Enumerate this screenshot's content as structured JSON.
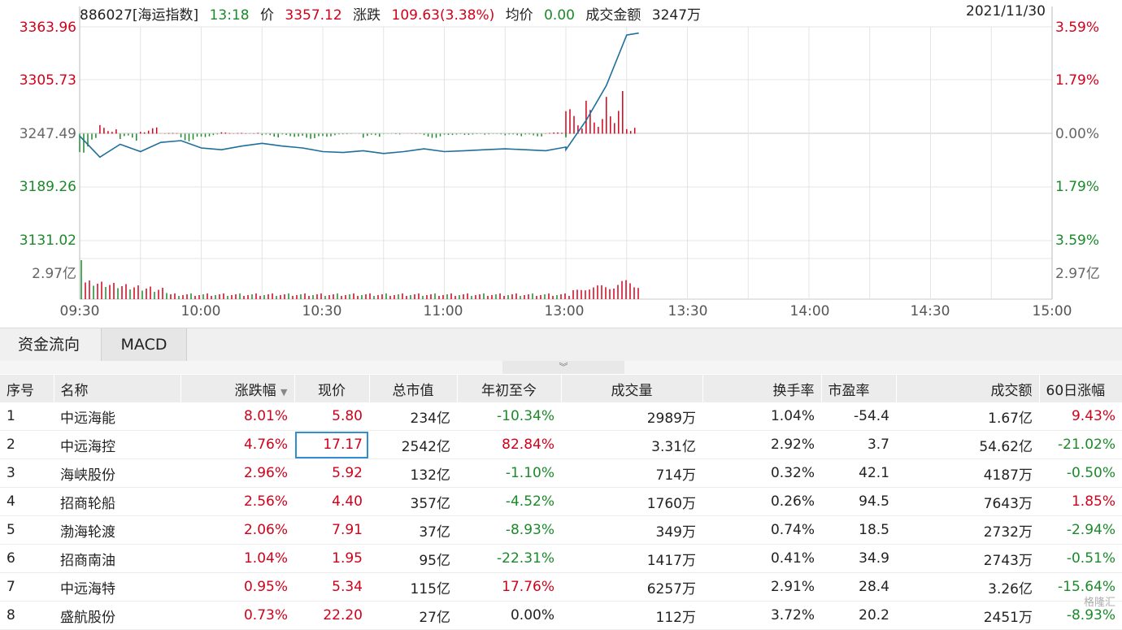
{
  "header": {
    "code_name": "886027[海运指数]",
    "time": "13:18",
    "price_label": "价",
    "price": "3357.12",
    "change_label": "涨跌",
    "change": "109.63(3.38%)",
    "avg_label": "均价",
    "avg": "0.00",
    "turnover_label": "成交金额",
    "turnover": "3247万",
    "date": "2021/11/30"
  },
  "chart": {
    "y_left": [
      "3363.96",
      "3305.73",
      "3247.49",
      "3189.26",
      "3131.02"
    ],
    "y_right": [
      "3.59%",
      "1.79%",
      "0.00%",
      "1.79%",
      "3.59%"
    ],
    "volume_label": "2.97亿",
    "x_ticks": [
      "09:30",
      "10:00",
      "10:30",
      "11:00",
      "13:00",
      "13:30",
      "14:00",
      "14:30",
      "15:00"
    ],
    "colors": {
      "up": "#d0021b",
      "down": "#1a8a2a",
      "line": "#1f6e9c",
      "grid": "#e4e4e4"
    }
  },
  "chart_data": {
    "type": "line",
    "ylim": [
      3131.02,
      3363.96
    ],
    "base": 3247.49,
    "x": [
      "09:30",
      "09:35",
      "09:40",
      "09:45",
      "09:50",
      "09:55",
      "10:00",
      "10:05",
      "10:10",
      "10:15",
      "10:20",
      "10:25",
      "10:30",
      "10:35",
      "10:40",
      "10:45",
      "10:50",
      "10:55",
      "11:00",
      "11:05",
      "11:10",
      "11:15",
      "11:20",
      "11:25",
      "11:30",
      "13:00",
      "13:05",
      "13:10",
      "13:15",
      "13:18"
    ],
    "values": [
      3245,
      3222,
      3236,
      3228,
      3238,
      3240,
      3232,
      3230,
      3234,
      3237,
      3234,
      3232,
      3228,
      3227,
      3229,
      3226,
      3228,
      3231,
      3228,
      3229,
      3230,
      3231,
      3230,
      3229,
      3233,
      3230,
      3262,
      3300,
      3355,
      3357.12
    ]
  },
  "tabs": {
    "fund_flow": "资金流向",
    "macd": "MACD"
  },
  "expander_icon": "double-chevron-down-icon",
  "table": {
    "headers": [
      "序号",
      "名称",
      "涨跌幅",
      "现价",
      "总市值",
      "年初至今",
      "成交量",
      "换手率",
      "市盈率",
      "成交额",
      "60日涨幅"
    ],
    "sort_icon": "sort-down-icon",
    "rows": [
      [
        "1",
        "中远海能",
        "8.01%",
        "5.80",
        "234亿",
        "-10.34%",
        "2989万",
        "1.04%",
        "-54.4",
        "1.67亿",
        "9.43%"
      ],
      [
        "2",
        "中远海控",
        "4.76%",
        "17.17",
        "2542亿",
        "82.84%",
        "3.31亿",
        "2.92%",
        "3.7",
        "54.62亿",
        "-21.02%"
      ],
      [
        "3",
        "海峡股份",
        "2.96%",
        "5.92",
        "132亿",
        "-1.10%",
        "714万",
        "0.32%",
        "42.1",
        "4187万",
        "-0.50%"
      ],
      [
        "4",
        "招商轮船",
        "2.56%",
        "4.40",
        "357亿",
        "-4.52%",
        "1760万",
        "0.26%",
        "94.5",
        "7643万",
        "1.85%"
      ],
      [
        "5",
        "渤海轮渡",
        "2.06%",
        "7.91",
        "37亿",
        "-8.93%",
        "349万",
        "0.74%",
        "18.5",
        "2732万",
        "-2.94%"
      ],
      [
        "6",
        "招商南油",
        "1.04%",
        "1.95",
        "95亿",
        "-22.31%",
        "1417万",
        "0.41%",
        "34.9",
        "2743万",
        "-0.51%"
      ],
      [
        "7",
        "中远海特",
        "0.95%",
        "5.34",
        "115亿",
        "17.76%",
        "6257万",
        "2.91%",
        "28.4",
        "3.26亿",
        "-15.64%"
      ],
      [
        "8",
        "盛航股份",
        "0.73%",
        "22.20",
        "27亿",
        "0.00%",
        "112万",
        "3.72%",
        "20.2",
        "2451万",
        "-8.93%"
      ]
    ]
  },
  "watermark": "格隆汇"
}
